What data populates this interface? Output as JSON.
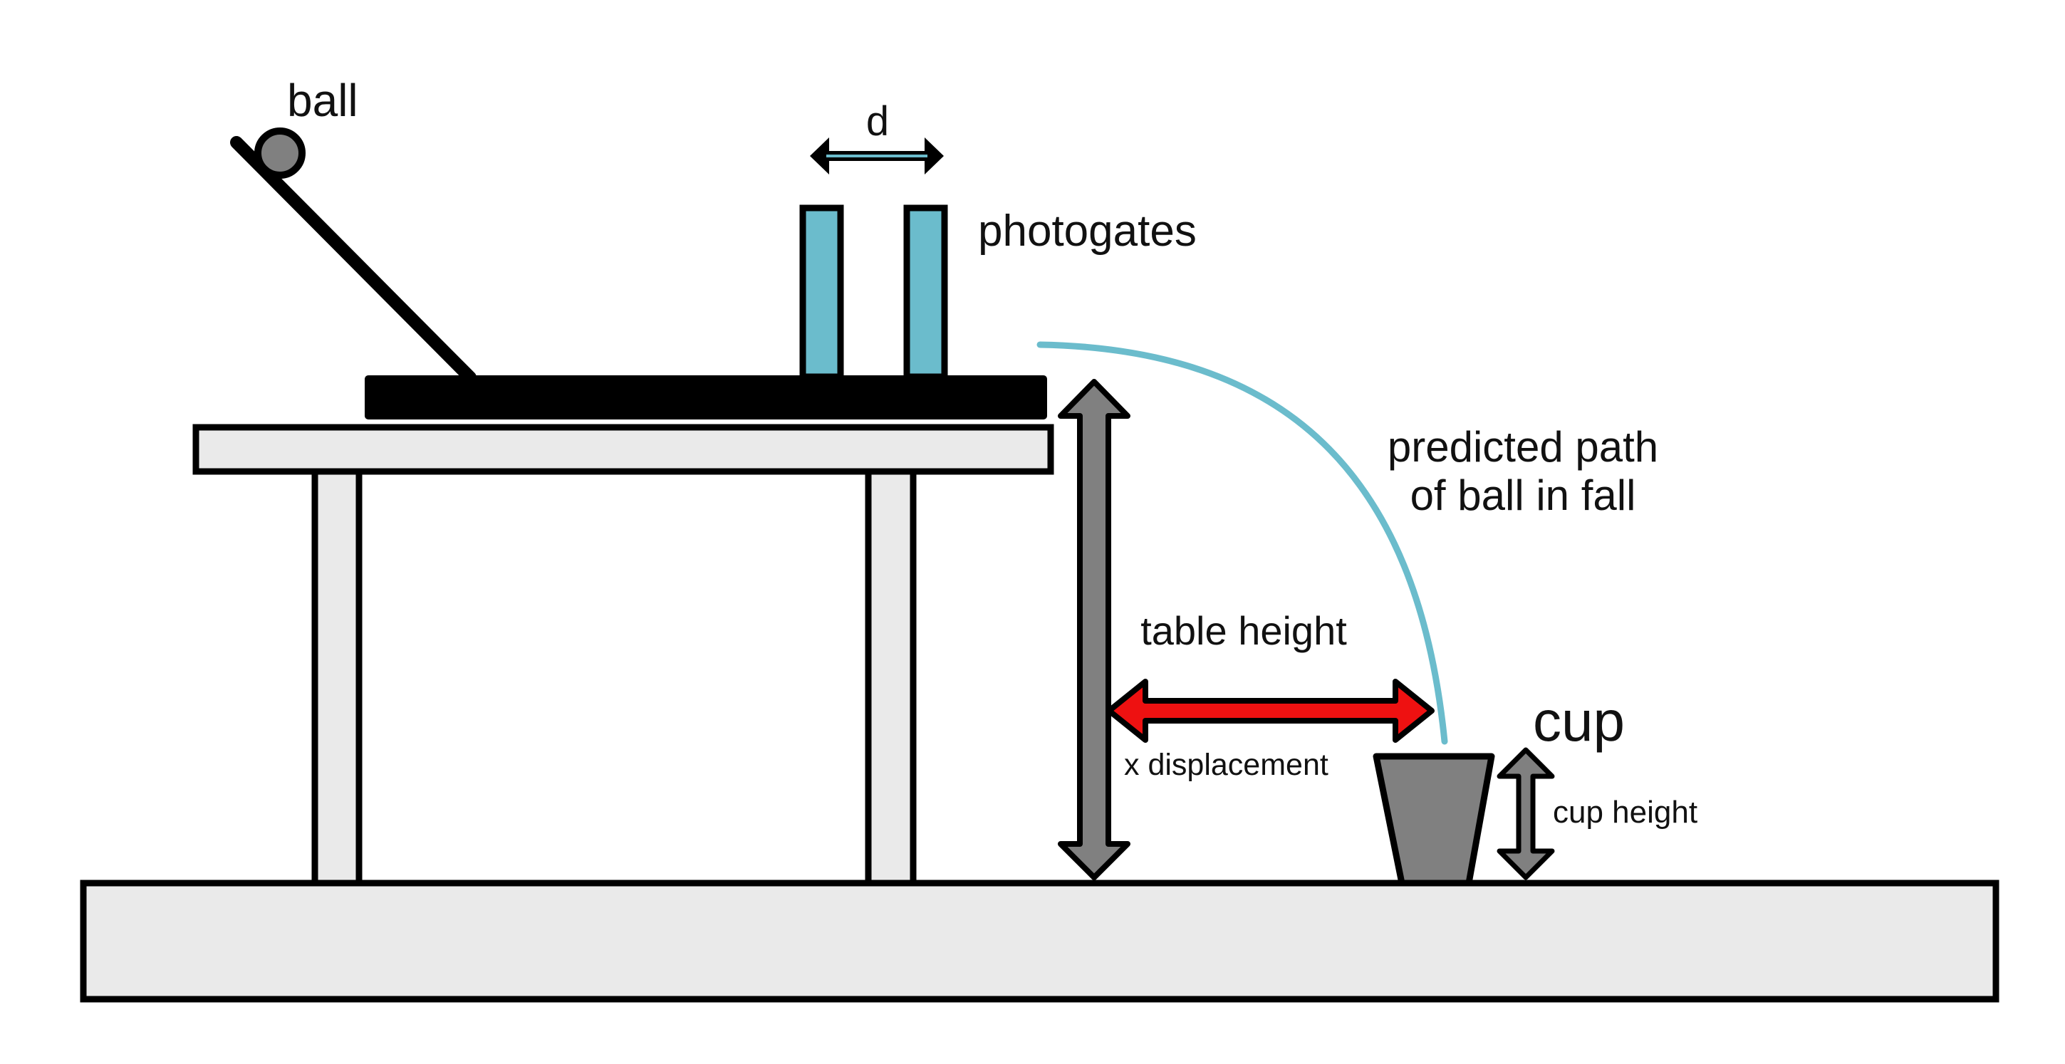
{
  "labels": {
    "ball": "ball",
    "d": "d",
    "photogates": "photogates",
    "predicted_path_line1": "predicted path",
    "predicted_path_line2": "of ball in fall",
    "table_height": "table height",
    "x_displacement": "x displacement",
    "cup": "cup",
    "cup_height": "cup height"
  },
  "colors": {
    "outline": "#000000",
    "table_fill": "#eaeaea",
    "gray_fill": "#808080",
    "photogate": "#6bbccc",
    "path": "#6bbccc",
    "x_arrow": "#ee1111"
  }
}
